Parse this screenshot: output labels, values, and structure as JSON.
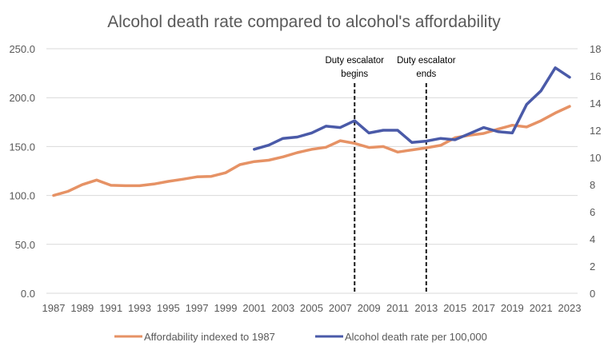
{
  "chart_data": {
    "type": "line",
    "title": "Alcohol death rate compared to alcohol's affordability",
    "xlabel": "",
    "ylabel": "",
    "y2label": "",
    "x": [
      1987,
      1988,
      1989,
      1990,
      1991,
      1992,
      1993,
      1994,
      1995,
      1996,
      1997,
      1998,
      1999,
      2000,
      2001,
      2002,
      2003,
      2004,
      2005,
      2006,
      2007,
      2008,
      2009,
      2010,
      2011,
      2012,
      2013,
      2014,
      2015,
      2016,
      2017,
      2018,
      2019,
      2020,
      2021,
      2022,
      2023
    ],
    "x_tick_labels": [
      "1987",
      "1989",
      "1991",
      "1993",
      "1995",
      "1997",
      "1999",
      "2001",
      "2003",
      "2005",
      "2007",
      "2009",
      "2011",
      "2013",
      "2015",
      "2017",
      "2019",
      "2021",
      "2023"
    ],
    "ylim": [
      0,
      250
    ],
    "y_ticks": [
      "0.0",
      "50.0",
      "100.0",
      "150.0",
      "200.0",
      "250.0"
    ],
    "y2lim": [
      0,
      18
    ],
    "y2_ticks": [
      "0",
      "2",
      "4",
      "6",
      "8",
      "10",
      "12",
      "14",
      "16",
      "18"
    ],
    "grid": true,
    "legend_position": "bottom",
    "series": [
      {
        "name": "Affordability indexed to 1987",
        "axis": "left",
        "color": "#E69265",
        "values": [
          100.0,
          104.2,
          111.0,
          115.8,
          110.4,
          110.0,
          110.0,
          111.7,
          114.4,
          116.6,
          119.0,
          119.5,
          123.2,
          131.5,
          134.6,
          136.0,
          139.5,
          143.8,
          147.1,
          149.3,
          156.0,
          153.3,
          149.0,
          150.0,
          144.4,
          146.6,
          148.7,
          151.2,
          159.0,
          161.5,
          163.4,
          167.8,
          171.8,
          170.0,
          176.4,
          184.3,
          191.1
        ]
      },
      {
        "name": "Alcohol death rate per 100,000",
        "axis": "right",
        "color": "#4A5AA8",
        "values": [
          null,
          null,
          null,
          null,
          null,
          null,
          null,
          null,
          null,
          null,
          null,
          null,
          null,
          null,
          10.6,
          10.9,
          11.4,
          11.5,
          11.8,
          12.3,
          12.2,
          12.7,
          11.8,
          12.0,
          12.0,
          11.1,
          11.2,
          11.4,
          11.3,
          11.75,
          12.2,
          11.9,
          11.8,
          13.9,
          14.9,
          16.6,
          15.9
        ]
      }
    ],
    "annotations": [
      {
        "x": 2008,
        "lines": [
          "Duty escalator",
          "begins"
        ],
        "style": "dashed-vertical"
      },
      {
        "x": 2013,
        "lines": [
          "Duty escalator",
          "ends"
        ],
        "style": "dashed-vertical"
      }
    ]
  }
}
